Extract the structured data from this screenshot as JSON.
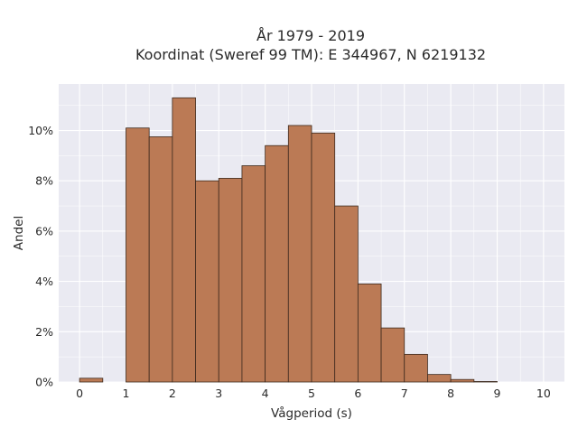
{
  "chart_data": {
    "type": "bar",
    "title_line1": "År 1979 - 2019",
    "title_line2": "Koordinat (Sweref 99 TM): E 344967, N 6219132",
    "xlabel": "Vågperiod (s)",
    "ylabel": "Andel",
    "bin_width": 0.5,
    "bin_starts": [
      0,
      0.5,
      1,
      1.5,
      2,
      2.5,
      3,
      3.5,
      4,
      4.5,
      5,
      5.5,
      6,
      6.5,
      7,
      7.5,
      8,
      8.5,
      9,
      9.5
    ],
    "values": [
      0.15,
      0,
      10.1,
      9.75,
      11.3,
      8.0,
      8.1,
      8.6,
      9.4,
      10.2,
      9.9,
      7.0,
      3.9,
      2.15,
      1.1,
      0.3,
      0.1,
      0.02,
      0,
      0
    ],
    "xlim": [
      -0.45,
      10.45
    ],
    "ylim": [
      0,
      11.85
    ],
    "xticks": [
      0,
      1,
      2,
      3,
      4,
      5,
      6,
      7,
      8,
      9,
      10
    ],
    "xtick_labels": [
      "0",
      "1",
      "2",
      "3",
      "4",
      "5",
      "6",
      "7",
      "8",
      "9",
      "10"
    ],
    "yticks": [
      0,
      2,
      4,
      6,
      8,
      10
    ],
    "ytick_labels": [
      "0%",
      "2%",
      "4%",
      "6%",
      "8%",
      "10%"
    ],
    "grid": true,
    "colors": {
      "bar_fill": "#bb7a55",
      "bar_edge": "#3d2a1e",
      "plot_bg": "#eaeaf2",
      "grid": "#ffffff"
    }
  }
}
